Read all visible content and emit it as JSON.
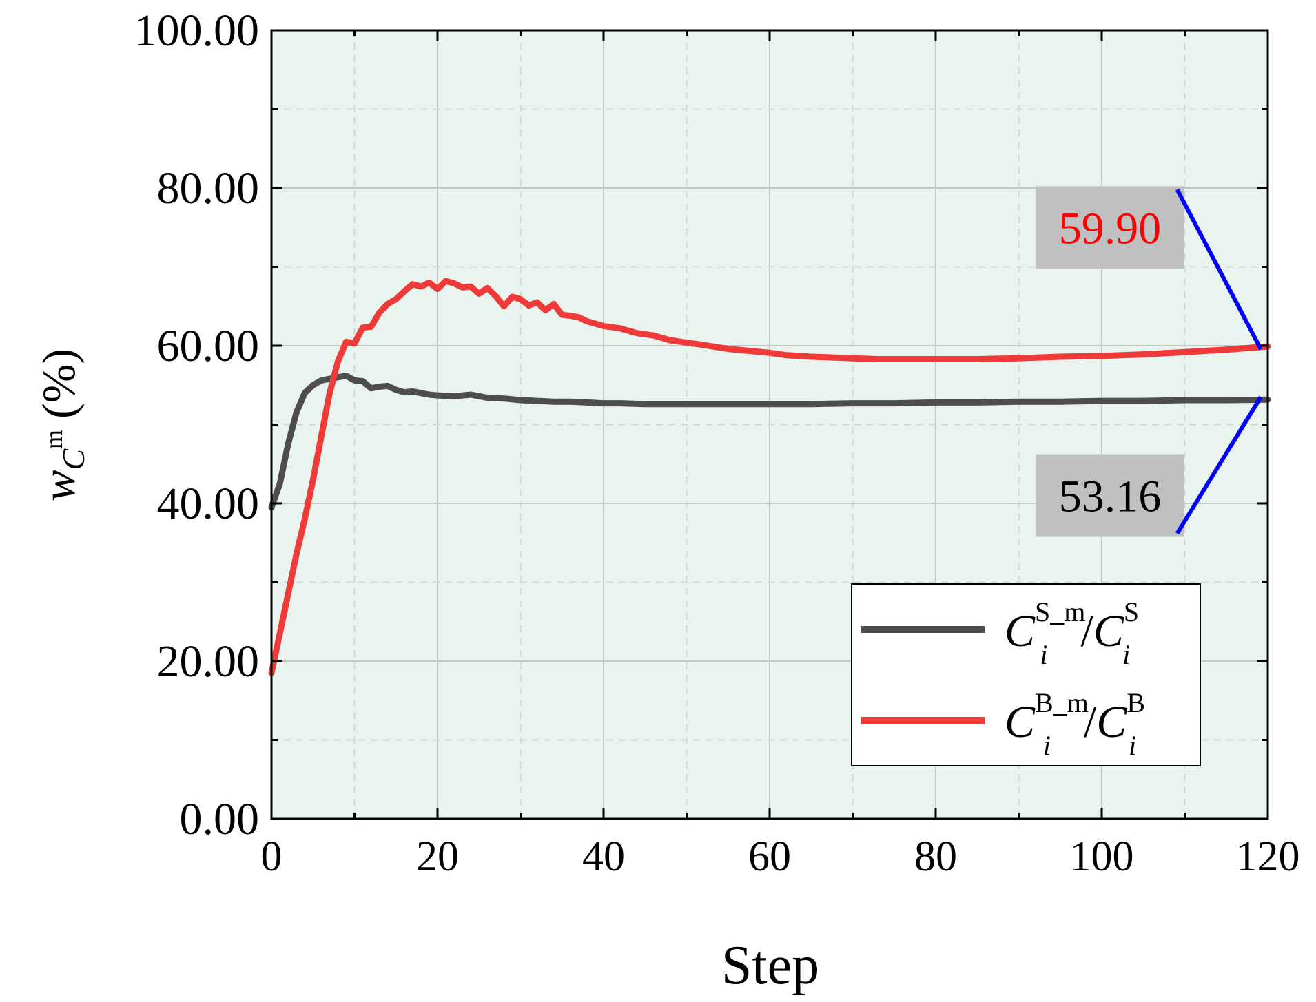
{
  "chart_data": {
    "type": "line",
    "title": "",
    "xlabel": "Step",
    "ylabel": {
      "base": "w",
      "sub": "C",
      "sub_sup": "m",
      "unit": "(%)"
    },
    "xlim": [
      0,
      120
    ],
    "ylim": [
      0,
      100
    ],
    "xticks": [
      "0",
      "20",
      "40",
      "60",
      "80",
      "100",
      "120"
    ],
    "yticks": [
      "0.00",
      "20.00",
      "40.00",
      "60.00",
      "80.00",
      "100.00"
    ],
    "grid": true,
    "background_color": "#eaf4ee",
    "legend_placement": "bottom-right",
    "series": [
      {
        "key": "S",
        "legend": {
          "base": "C",
          "sub": "i",
          "sup": "S_m",
          "slash": "/",
          "base2": "C",
          "sub2": "i",
          "sup2": "S"
        },
        "color": "#4d4d4d",
        "x": [
          0,
          1,
          2,
          3,
          4,
          5,
          6,
          7,
          8,
          9,
          10,
          11,
          12,
          13,
          14,
          15,
          16,
          17,
          18,
          19,
          20,
          22,
          24,
          26,
          28,
          30,
          32,
          34,
          36,
          38,
          40,
          42,
          45,
          50,
          55,
          60,
          65,
          70,
          75,
          80,
          85,
          90,
          95,
          100,
          105,
          110,
          115,
          120
        ],
        "y": [
          39.5,
          42.5,
          47.5,
          51.5,
          54.0,
          55.0,
          55.6,
          55.8,
          56.0,
          56.2,
          55.6,
          55.5,
          54.6,
          54.8,
          54.9,
          54.4,
          54.1,
          54.2,
          54.0,
          53.8,
          53.7,
          53.6,
          53.8,
          53.4,
          53.3,
          53.1,
          53.0,
          52.9,
          52.9,
          52.8,
          52.7,
          52.7,
          52.6,
          52.6,
          52.6,
          52.6,
          52.6,
          52.7,
          52.7,
          52.8,
          52.8,
          52.9,
          52.9,
          53.0,
          53.0,
          53.1,
          53.1,
          53.16
        ]
      },
      {
        "key": "B",
        "legend": {
          "base": "C",
          "sub": "i",
          "sup": "B_m",
          "slash": "/",
          "base2": "C",
          "sub2": "i",
          "sup2": "B"
        },
        "color": "#ef3a3a",
        "x": [
          0,
          1,
          2,
          3,
          4,
          5,
          6,
          7,
          8,
          9,
          10,
          11,
          12,
          13,
          14,
          15,
          16,
          17,
          18,
          19,
          20,
          21,
          22,
          23,
          24,
          25,
          26,
          27,
          28,
          29,
          30,
          31,
          32,
          33,
          34,
          35,
          36,
          37,
          38,
          40,
          42,
          44,
          46,
          48,
          50,
          52,
          55,
          58,
          60,
          62,
          65,
          68,
          70,
          73,
          75,
          80,
          85,
          90,
          95,
          100,
          105,
          110,
          115,
          120
        ],
        "y": [
          18.5,
          23.5,
          28.5,
          33.5,
          38.0,
          43.0,
          48.5,
          54.0,
          58.0,
          60.5,
          60.3,
          62.3,
          62.4,
          64.2,
          65.3,
          65.9,
          66.9,
          67.8,
          67.5,
          68.0,
          67.2,
          68.2,
          67.9,
          67.4,
          67.5,
          66.6,
          67.3,
          66.3,
          65.0,
          66.2,
          65.9,
          65.1,
          65.5,
          64.5,
          65.3,
          63.9,
          63.8,
          63.6,
          63.1,
          62.5,
          62.2,
          61.6,
          61.3,
          60.7,
          60.4,
          60.1,
          59.6,
          59.3,
          59.1,
          58.8,
          58.6,
          58.5,
          58.4,
          58.3,
          58.3,
          58.3,
          58.3,
          58.4,
          58.6,
          58.7,
          58.9,
          59.2,
          59.5,
          59.9
        ]
      }
    ],
    "annotations": [
      {
        "text": "59.90",
        "color": "#ff0000",
        "box_color": "#c0c0c0",
        "pointer_color": "#0000ff",
        "target_x": 120,
        "target_y": 59.9,
        "box_x": 101,
        "box_y": 75
      },
      {
        "text": "53.16",
        "color": "#000000",
        "box_color": "#c0c0c0",
        "pointer_color": "#0000ff",
        "target_x": 120,
        "target_y": 53.16,
        "box_x": 101,
        "box_y": 41
      }
    ]
  }
}
